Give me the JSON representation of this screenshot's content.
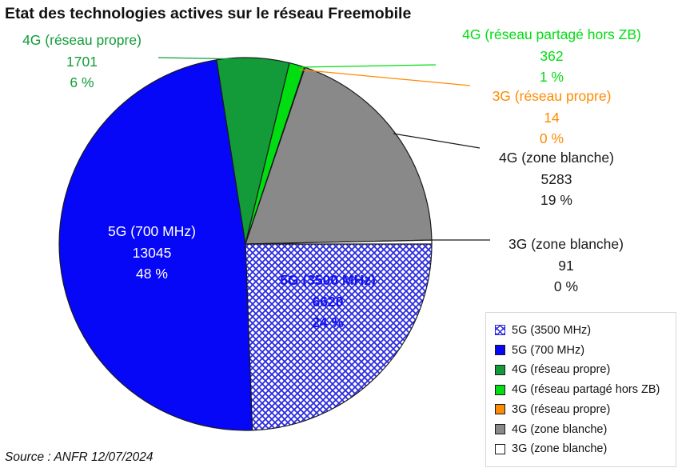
{
  "title": "Etat des technologies actives sur le réseau Freemobile",
  "source_note": "Source : ANFR 12/07/2024",
  "chart_data": {
    "type": "pie",
    "title": "Etat des technologies actives sur le réseau Freemobile",
    "start_angle_deg": 90,
    "direction": "clockwise",
    "legend_position": "bottom-right",
    "series": [
      {
        "name": "5G (3500 MHz)",
        "value": 6620,
        "pct_label": "24 %",
        "slice_fill": "blue-crosshatch",
        "color": "#ffffff",
        "hatch_color": "#2a2ae0",
        "text_color": "#1412f0"
      },
      {
        "name": "5G (700 MHz)",
        "value": 13045,
        "pct_label": "48 %",
        "color": "#0707f8",
        "text_color": "#ffffff"
      },
      {
        "name": "4G (réseau propre)",
        "value": 1701,
        "pct_label": "6 %",
        "color": "#129b38",
        "text_color": "#129b38"
      },
      {
        "name": "4G (réseau partagé hors ZB)",
        "value": 362,
        "pct_label": "1 %",
        "color": "#00dd11",
        "text_color": "#00dd11"
      },
      {
        "name": "3G (réseau propre)",
        "value": 14,
        "pct_label": "0 %",
        "color": "#ff8a00",
        "text_color": "#ff8a00"
      },
      {
        "name": "4G (zone blanche)",
        "value": 5283,
        "pct_label": "19 %",
        "color": "#898989",
        "text_color": "#1a1a1a"
      },
      {
        "name": "3G (zone blanche)",
        "value": 91,
        "pct_label": "0 %",
        "color": "#ffffff",
        "text_color": "#1a1a1a"
      }
    ]
  }
}
